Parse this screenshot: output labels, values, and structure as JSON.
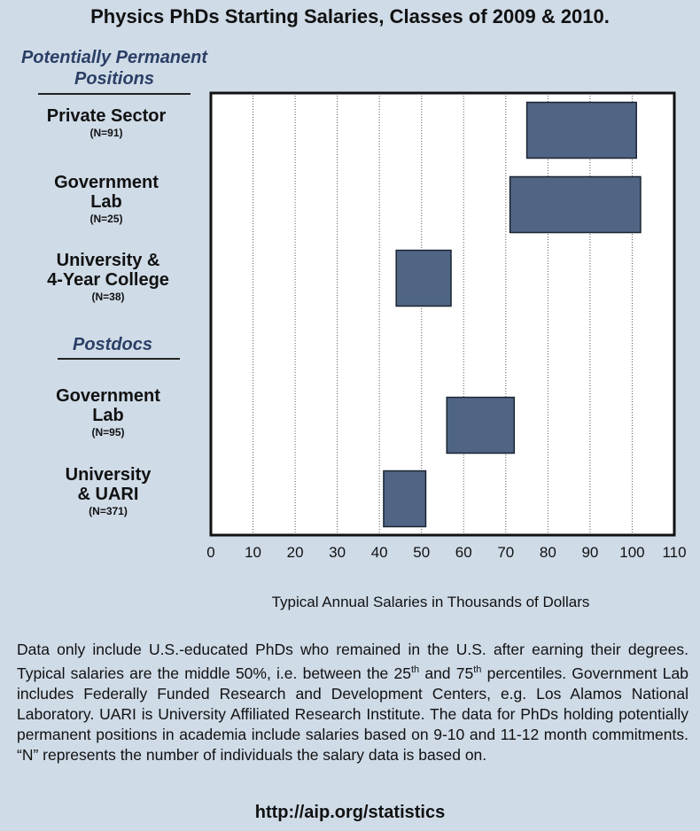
{
  "title": "Physics PhDs Starting Salaries, Classes of 2009 & 2010.",
  "sections": {
    "permanent": {
      "line1": "Potentially Permanent",
      "line2": "Positions"
    },
    "postdocs": "Postdocs"
  },
  "categories": [
    {
      "line1": "Private Sector",
      "line2": "",
      "n": "(N=91)"
    },
    {
      "line1": "Government",
      "line2": "Lab",
      "n": "(N=25)"
    },
    {
      "line1": "University &",
      "line2": "4-Year College",
      "n": "(N=38)"
    },
    {
      "line1": "Government",
      "line2": "Lab",
      "n": "(N=95)"
    },
    {
      "line1": "University",
      "line2": "& UARI",
      "n": "(N=371)"
    }
  ],
  "note": {
    "p1": "Data only include U.S.-educated PhDs who remained in the U.S. after earning their degrees.  Typical salaries are the middle 50%, i.e. between the 25",
    "sup1": "th",
    "p2": " and 75",
    "sup2": "th",
    "p3": " percentiles.  Government Lab includes Federally Funded Research and Development Centers, e.g. Los Alamos National Laboratory.  UARI is University Affiliated Research Institute.  The data for PhDs holding potentially permanent positions in academia include salaries based on 9-10 and 11-12 month commitments.  “N” represents the number of individuals the salary data is based on."
  },
  "url": "http://aip.org/statistics",
  "chart_data": {
    "type": "bar",
    "orientation": "horizontal-floating",
    "categories": [
      "Private Sector (N=91)",
      "Government Lab (N=25)",
      "University & 4-Year College (N=38)",
      "Government Lab (N=95)",
      "University & UARI (N=371)"
    ],
    "series": [
      {
        "ranges": [
          [
            75,
            101
          ],
          [
            71,
            102
          ],
          [
            44,
            57
          ],
          [
            56,
            72
          ],
          [
            41,
            51
          ]
        ]
      }
    ],
    "xlabel": "Typical Annual Salaries in Thousands of Dollars",
    "xlim": [
      0,
      110
    ],
    "xticks": [
      0,
      10,
      20,
      30,
      40,
      50,
      60,
      70,
      80,
      90,
      100,
      110
    ],
    "grid": true,
    "bar_color": "#4f6583"
  }
}
